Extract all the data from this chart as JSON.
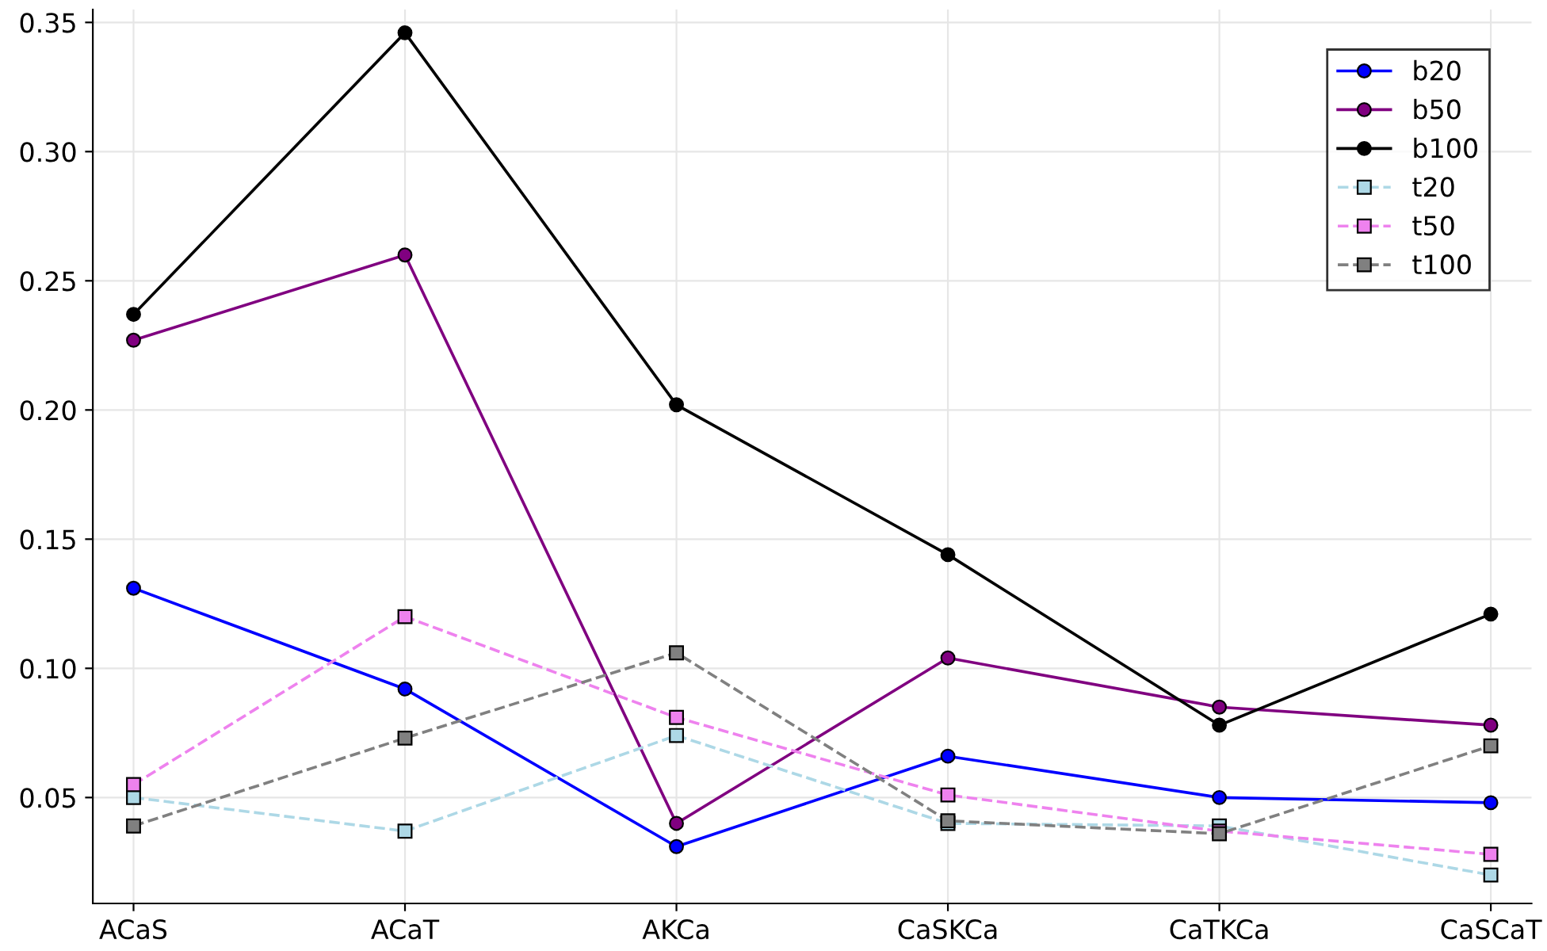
{
  "chart_data": {
    "type": "line",
    "categories": [
      "ACaS",
      "ACaT",
      "AKCa",
      "CaSKCa",
      "CaTKCa",
      "CaSCaT"
    ],
    "ylim": [
      0.009,
      0.355
    ],
    "yticks": [
      {
        "value": 0.05,
        "label": "0.05"
      },
      {
        "value": 0.1,
        "label": "0.10"
      },
      {
        "value": 0.15,
        "label": "0.15"
      },
      {
        "value": 0.2,
        "label": "0.20"
      },
      {
        "value": 0.25,
        "label": "0.25"
      },
      {
        "value": 0.3,
        "label": "0.30"
      },
      {
        "value": 0.35,
        "label": "0.35"
      }
    ],
    "grid": true,
    "legend": "top right",
    "series": [
      {
        "name": "b20",
        "color": "#0000ff",
        "marker": "circle",
        "line_style": "solid",
        "values": [
          0.131,
          0.092,
          0.031,
          0.066,
          0.05,
          0.048
        ]
      },
      {
        "name": "b50",
        "color": "#800080",
        "marker": "circle",
        "line_style": "solid",
        "values": [
          0.227,
          0.26,
          0.04,
          0.104,
          0.085,
          0.078
        ]
      },
      {
        "name": "b100",
        "color": "#000000",
        "marker": "circle",
        "line_style": "solid",
        "values": [
          0.237,
          0.346,
          0.202,
          0.144,
          0.078,
          0.121
        ]
      },
      {
        "name": "t20",
        "color": "#add8e6",
        "marker": "square",
        "line_style": "dashed",
        "values": [
          0.05,
          0.037,
          0.074,
          0.04,
          0.039,
          0.02
        ]
      },
      {
        "name": "t50",
        "color": "#ee82ee",
        "marker": "square",
        "line_style": "dashed",
        "values": [
          0.055,
          0.12,
          0.081,
          0.051,
          0.037,
          0.028
        ]
      },
      {
        "name": "t100",
        "color": "#808080",
        "marker": "square",
        "line_style": "dashed",
        "values": [
          0.039,
          0.073,
          0.106,
          0.041,
          0.036,
          0.07
        ]
      }
    ]
  }
}
